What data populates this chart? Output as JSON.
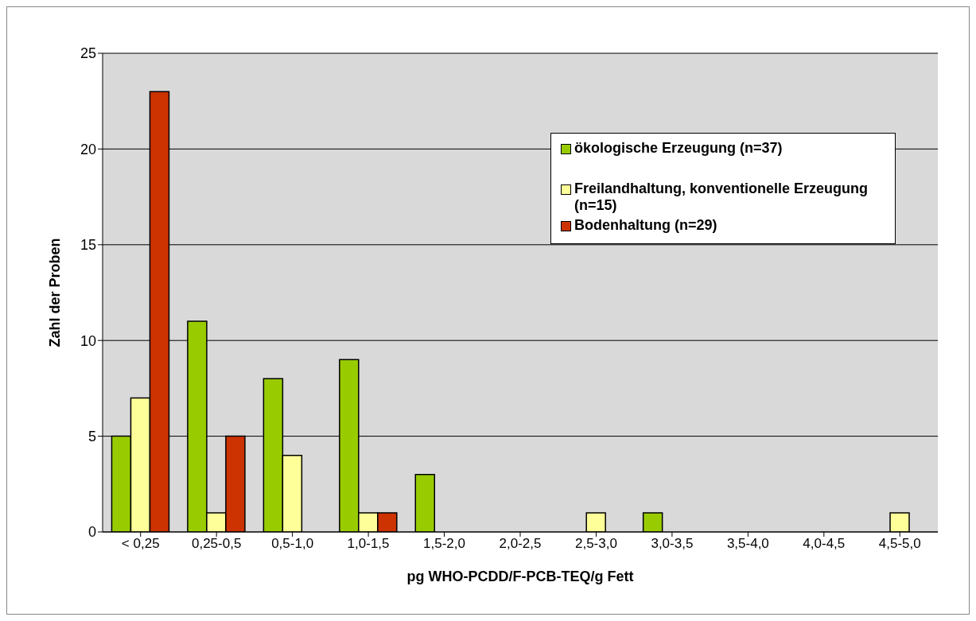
{
  "chart_data": {
    "type": "bar",
    "xlabel": "pg WHO-PCDD/F-PCB-TEQ/g Fett",
    "ylabel": "Zahl der Proben",
    "categories": [
      "< 0,25",
      "0,25-0,5",
      "0,5-1,0",
      "1,0-1,5",
      "1,5-2,0",
      "2,0-2,5",
      "2,5-3,0",
      "3,0-3,5",
      "3,5-4,0",
      "4,0-4,5",
      "4,5-5,0"
    ],
    "series": [
      {
        "name": "ökologische Erzeugung (n=37)",
        "color": "#99cc00",
        "values": [
          5,
          11,
          8,
          9,
          3,
          0,
          0,
          1,
          0,
          0,
          0
        ]
      },
      {
        "name": "Freilandhaltung, konventionelle Erzeugung (n=15)",
        "color": "#ffff99",
        "values": [
          7,
          1,
          4,
          1,
          0,
          0,
          1,
          0,
          0,
          0,
          1
        ]
      },
      {
        "name": "Bodenhaltung (n=29)",
        "color": "#cc3300",
        "values": [
          23,
          5,
          0,
          1,
          0,
          0,
          0,
          0,
          0,
          0,
          0
        ]
      }
    ],
    "ylim": [
      0,
      25
    ],
    "yticks": [
      0,
      5,
      10,
      15,
      20,
      25
    ],
    "grid": "y",
    "legend": "top right"
  }
}
